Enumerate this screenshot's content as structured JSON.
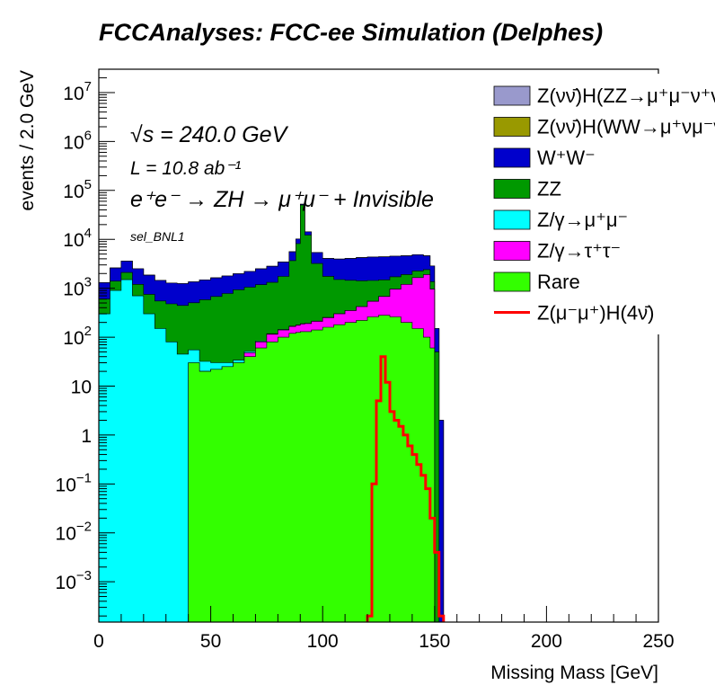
{
  "chart_data": {
    "type": "area",
    "title": "FCCAnalyses: FCC-ee Simulation (Delphes)",
    "xlabel": "Missing Mass [GeV]",
    "ylabel": "events / 2.0 GeV",
    "xlim": [
      0,
      250
    ],
    "ylim": [
      0.00015,
      30000000
    ],
    "yscale": "log",
    "stacked": true,
    "grid": false,
    "legend_position": "top-right",
    "x_ticks": [
      "0",
      "50",
      "100",
      "150",
      "200",
      "250"
    ],
    "y_ticks": [
      {
        "base": "10",
        "exp": "7"
      },
      {
        "base": "10",
        "exp": "6"
      },
      {
        "base": "10",
        "exp": "5"
      },
      {
        "base": "10",
        "exp": "4"
      },
      {
        "base": "10",
        "exp": "3"
      },
      {
        "base": "10",
        "exp": "2"
      },
      {
        "base": "10",
        "exp": ""
      },
      {
        "base": "1",
        "exp": ""
      },
      {
        "base": "10",
        "exp": "−1"
      },
      {
        "base": "10",
        "exp": "−2"
      },
      {
        "base": "10",
        "exp": "−3"
      }
    ],
    "annotations": {
      "sqrt_s": "√s = 240.0 GeV",
      "lumi": "L = 10.8 ab⁻¹",
      "process": "e⁺e⁻ → ZH → μ⁺μ⁻ + Invisible",
      "selection": "sel_BNL1"
    },
    "x": [
      0,
      5,
      10,
      15,
      20,
      25,
      30,
      35,
      40,
      45,
      50,
      55,
      60,
      65,
      70,
      75,
      80,
      85,
      88,
      90,
      92,
      95,
      100,
      105,
      110,
      115,
      120,
      125,
      130,
      135,
      140,
      145,
      148,
      150,
      152,
      154
    ],
    "series": [
      {
        "name": "Z(νν̄)H(ZZ→μ⁺μ⁻ν⁺ν⁻)",
        "color": "#9999cc",
        "values": [
          0,
          0,
          0,
          0,
          0,
          0,
          0,
          0,
          0,
          0,
          0,
          0,
          0.0003,
          0.0005,
          0.0009,
          0.0015,
          0.003,
          0.005,
          0.007,
          0.009,
          0.012,
          0.018,
          0.04,
          0.08,
          0.15,
          0.35,
          0.7,
          1.4,
          1.9,
          1.8,
          1.4,
          0.8,
          0.3,
          0.05,
          0.002,
          0
        ]
      },
      {
        "name": "Z(νν̄)H(WW→μ⁺νμ⁻ν̄)",
        "color": "#999900",
        "values": [
          0,
          0,
          0,
          0,
          0,
          0,
          0,
          0,
          0,
          0,
          0,
          0,
          0,
          0,
          0,
          0,
          0,
          0,
          0,
          0,
          0.0004,
          0.0003,
          0.0005,
          0.001,
          0.002,
          0.005,
          0.01,
          0.02,
          0.03,
          0.04,
          0.05,
          0.035,
          0.015,
          0.004,
          0,
          0
        ]
      },
      {
        "name": "W⁺W⁻",
        "color": "#0000cc",
        "values": [
          700,
          1200,
          1500,
          1300,
          1100,
          900,
          800,
          800,
          850,
          900,
          950,
          1000,
          1050,
          1150,
          1300,
          1500,
          1700,
          1900,
          2000,
          2050,
          2100,
          2150,
          2300,
          2450,
          2600,
          2800,
          2900,
          2900,
          2800,
          2700,
          2600,
          2200,
          1500,
          100,
          2,
          0
        ]
      },
      {
        "name": "ZZ",
        "color": "#009900",
        "values": [
          300,
          500,
          600,
          500,
          450,
          400,
          400,
          400,
          450,
          550,
          650,
          750,
          900,
          1000,
          1100,
          1200,
          1600,
          3500,
          8000,
          50000,
          12000,
          3000,
          1500,
          1200,
          1100,
          1000,
          900,
          800,
          750,
          700,
          600,
          500,
          400,
          50,
          0,
          0
        ]
      },
      {
        "name": "Z/γ→μ⁺μ⁻",
        "color": "#00ffff",
        "values": [
          300,
          900,
          1500,
          700,
          300,
          150,
          80,
          45,
          25,
          12,
          8,
          5,
          4,
          3,
          3,
          3,
          3,
          3,
          3,
          3,
          3,
          3,
          3,
          3,
          3,
          3,
          3,
          3,
          3,
          3,
          3,
          3,
          3,
          0,
          0,
          0
        ]
      },
      {
        "name": "Z/γ→τ⁺τ⁻",
        "color": "#ff00ff",
        "values": [
          0,
          0,
          0,
          0,
          0,
          0,
          0,
          0,
          0,
          0,
          0,
          0,
          0,
          8,
          20,
          35,
          40,
          45,
          50,
          55,
          60,
          70,
          90,
          120,
          150,
          200,
          280,
          400,
          700,
          1000,
          1500,
          1800,
          900,
          0,
          0,
          0
        ]
      },
      {
        "name": "Rare",
        "color": "#33ff00",
        "values": [
          0,
          0,
          0,
          0,
          0,
          0,
          0,
          0,
          30,
          20,
          22,
          25,
          30,
          40,
          60,
          80,
          100,
          120,
          125,
          130,
          130,
          140,
          160,
          180,
          200,
          220,
          260,
          280,
          260,
          200,
          150,
          100,
          60,
          0,
          0,
          0
        ]
      }
    ],
    "signal": {
      "name": "Z(μ⁻μ⁺)H(4ν̄)",
      "color": "#ff0000",
      "x": [
        120,
        122,
        124,
        126,
        128,
        130,
        132,
        134,
        136,
        138,
        140,
        142,
        144,
        146,
        148,
        150,
        152
      ],
      "values": [
        0.0002,
        0.1,
        5,
        40,
        12,
        3,
        2,
        1.5,
        1,
        0.6,
        0.4,
        0.25,
        0.15,
        0.08,
        0.02,
        0.004,
        0.0002
      ]
    }
  }
}
